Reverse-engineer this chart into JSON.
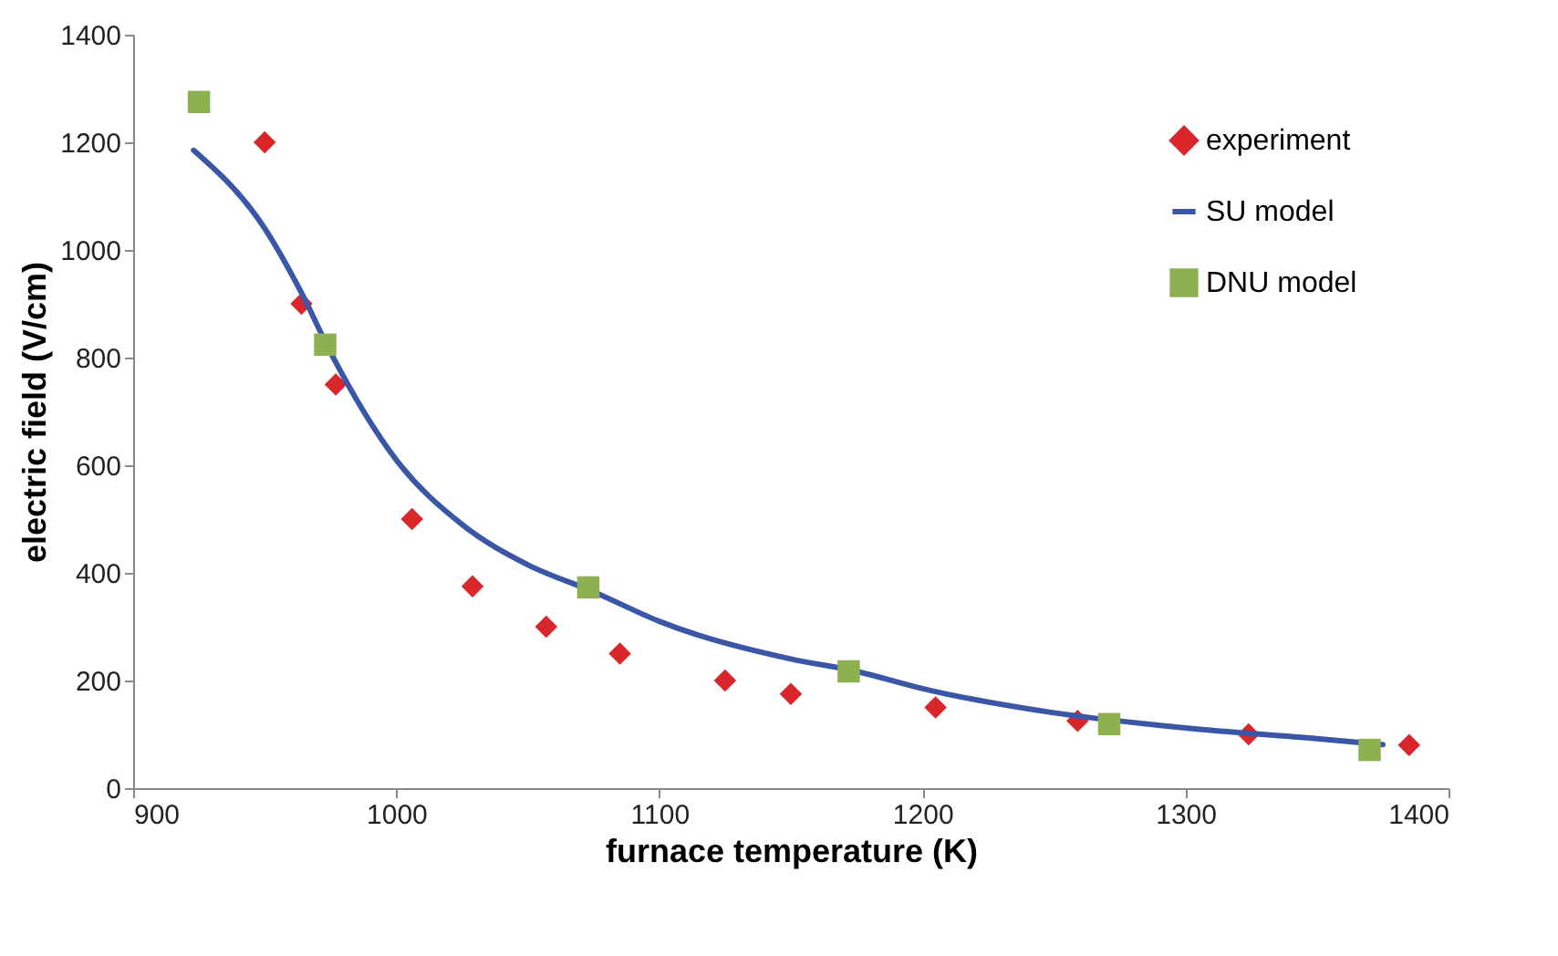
{
  "chart_data": {
    "type": "scatter",
    "xlabel": "furnace temperature (K)",
    "ylabel": "electric field (V/cm)",
    "xlim": [
      900,
      1400
    ],
    "xticks": [
      900,
      1000,
      1100,
      1200,
      1300,
      1400
    ],
    "ylim": [
      0,
      1400
    ],
    "yticks": [
      0,
      200,
      400,
      600,
      800,
      1000,
      1200,
      1400
    ],
    "grid": false,
    "legend": "top right",
    "series": [
      {
        "name": "experiment",
        "marker": "diamond",
        "color": "#d9262b",
        "x": [
          950,
          964,
          977,
          1006,
          1029,
          1057,
          1085,
          1125,
          1150,
          1205,
          1259,
          1324,
          1385
        ],
        "values": [
          1200,
          900,
          750,
          500,
          375,
          300,
          250,
          200,
          175,
          150,
          125,
          100,
          80
        ]
      },
      {
        "name": "SU model",
        "type": "line",
        "marker": "none",
        "line_style": "solid",
        "color": "#3a57a7",
        "x": [
          923,
          950,
          964,
          975,
          1000,
          1025,
          1050,
          1075,
          1100,
          1150,
          1175,
          1200,
          1250,
          1300,
          1350,
          1375
        ],
        "values": [
          1185,
          1040,
          920,
          810,
          610,
          490,
          415,
          365,
          310,
          240,
          217,
          185,
          140,
          112,
          92,
          81
        ]
      },
      {
        "name": "DNU model",
        "marker": "square",
        "color": "#8db050",
        "x": [
          925,
          973,
          1073,
          1172,
          1271,
          1370
        ],
        "values": [
          1275,
          824,
          373,
          217,
          119,
          71
        ]
      }
    ]
  }
}
